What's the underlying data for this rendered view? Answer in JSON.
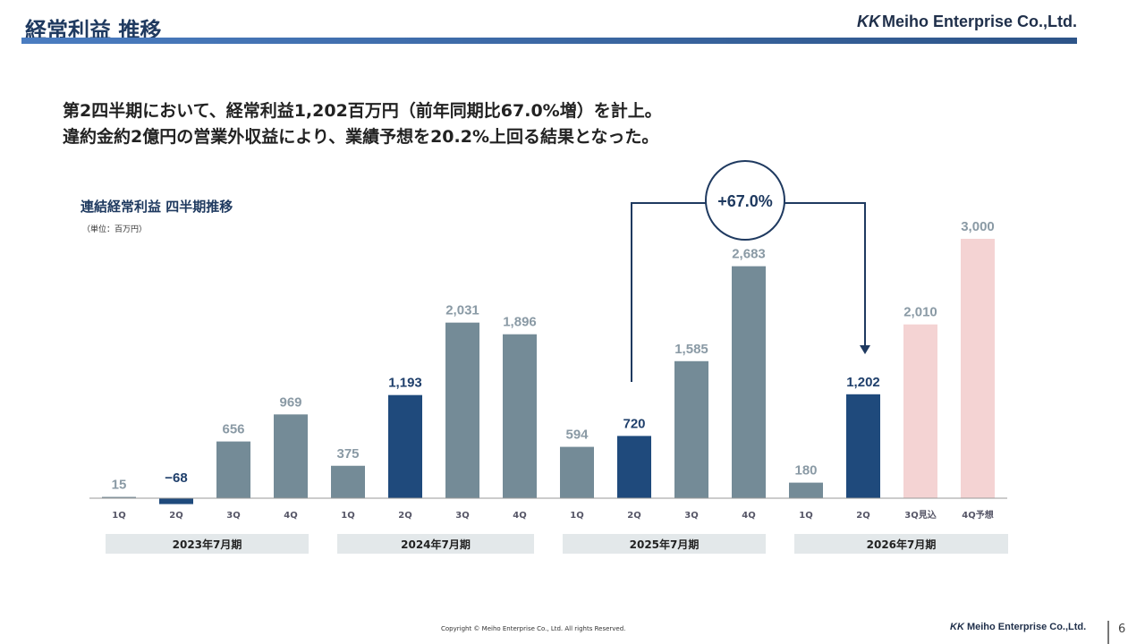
{
  "header": {
    "title": "経常利益 推移",
    "logo": "Meiho Enterprise Co.,Ltd."
  },
  "headline": [
    "第2四半期において、経常利益1,202百万円（前年同期比67.0%増）を計上。",
    "違約金約2億円の営業外収益により、業績予想を20.2%上回る結果となった。"
  ],
  "chart_data": {
    "type": "bar",
    "title": "連結経常利益 四半期推移",
    "unit": "（単位：百万円）",
    "categories": [
      "1Q",
      "2Q",
      "3Q",
      "4Q",
      "1Q",
      "2Q",
      "3Q",
      "4Q",
      "1Q",
      "2Q",
      "3Q",
      "4Q",
      "1Q",
      "2Q",
      "3Q見込",
      "4Q予想"
    ],
    "values": [
      15,
      -68,
      656,
      969,
      375,
      1193,
      2031,
      1896,
      594,
      720,
      1585,
      2683,
      180,
      1202,
      2010,
      3000
    ],
    "value_labels": [
      "15",
      "−68",
      "656",
      "969",
      "375",
      "1,193",
      "2,031",
      "1,896",
      "594",
      "720",
      "1,585",
      "2,683",
      "180",
      "1,202",
      "2,010",
      "3,000"
    ],
    "kinds": [
      "actual",
      "q2",
      "actual",
      "actual",
      "actual",
      "q2",
      "actual",
      "actual",
      "actual",
      "q2",
      "actual",
      "actual",
      "actual",
      "q2",
      "forecast",
      "forecast"
    ],
    "groups": [
      "2023年7月期",
      "2024年7月期",
      "2025年7月期",
      "2026年7月期"
    ],
    "annotation": "+67.0%",
    "colors": {
      "actual": "#748b97",
      "q2": "#1f4a7c",
      "forecast": "#f4d3d3"
    },
    "ylim": [
      -100,
      3100
    ]
  },
  "footer": {
    "copyright": "Copyright © Meiho Enterprise Co., Ltd. All rights Reserved.",
    "logo": "Meiho Enterprise Co.,Ltd.",
    "page": "6"
  }
}
